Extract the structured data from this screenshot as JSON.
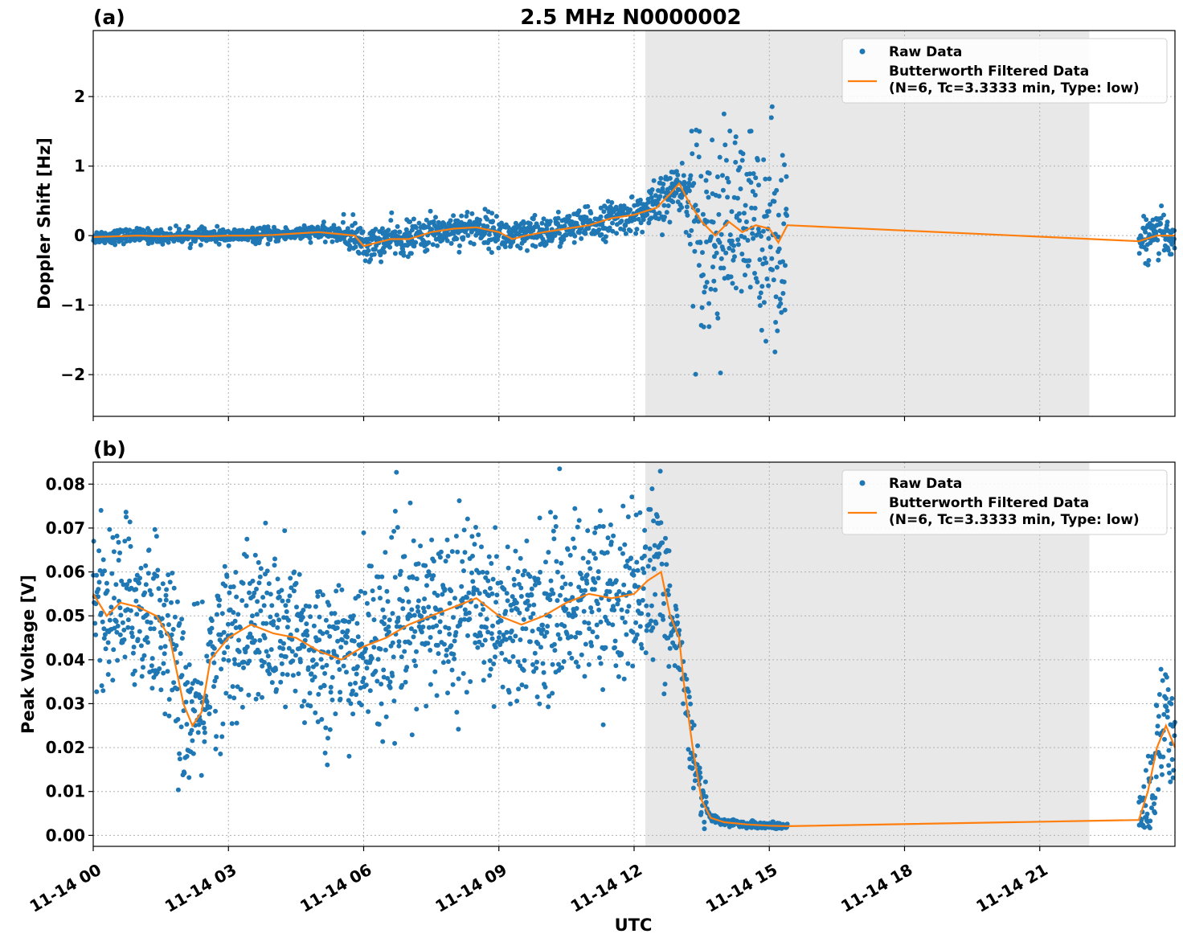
{
  "figure": {
    "title": "2.5 MHz N0000002",
    "xlabel": "UTC"
  },
  "colors": {
    "raw": "#1f77b4",
    "filtered": "#ff7f0e",
    "shade": "#e8e8e8",
    "grid": "#b0b0b0"
  },
  "chart_data": [
    {
      "type": "scatter",
      "panel_label": "(a)",
      "ylabel": "Doppler Shift [Hz]",
      "x_unit": "hours since 11-14 00:00 UTC",
      "xlim": [
        0,
        24
      ],
      "ylim": [
        -2.6,
        2.95
      ],
      "yticks": [
        -2,
        -1,
        0,
        1,
        2
      ],
      "ytick_labels": [
        "−2",
        "−1",
        "0",
        "1",
        "2"
      ],
      "grid": true,
      "legend_position": "top-right",
      "shaded_interval_hours": [
        12.25,
        22.1
      ],
      "series": [
        {
          "name": "Raw Data",
          "kind": "points",
          "gaps_hours": [
            [
              15.4,
              23.2
            ]
          ]
        },
        {
          "name": "Butterworth Filtered Data\n(N=6, Tc=3.3333 min, Type: low)",
          "kind": "line",
          "x": [
            0,
            0.5,
            1,
            1.5,
            2,
            2.5,
            3,
            3.5,
            4,
            4.5,
            5,
            5.5,
            5.8,
            6.0,
            6.3,
            6.6,
            7,
            7.5,
            8,
            8.5,
            9,
            9.3,
            9.6,
            10,
            10.5,
            11,
            11.5,
            12,
            12.5,
            12.8,
            13.0,
            13.2,
            13.5,
            13.8,
            14.1,
            14.4,
            14.7,
            15.0,
            15.2,
            15.4,
            23.2,
            23.6,
            24
          ],
          "y": [
            -0.02,
            -0.01,
            0.0,
            -0.01,
            0.0,
            -0.01,
            0.0,
            0.0,
            0.01,
            0.03,
            0.05,
            0.02,
            0.0,
            -0.15,
            -0.1,
            -0.05,
            -0.05,
            0.05,
            0.1,
            0.12,
            0.05,
            -0.05,
            0.0,
            0.05,
            0.1,
            0.15,
            0.25,
            0.3,
            0.4,
            0.6,
            0.75,
            0.5,
            0.2,
            0.0,
            0.2,
            0.05,
            0.15,
            0.1,
            -0.1,
            0.15,
            -0.08,
            0.0,
            0.0
          ]
        }
      ]
    },
    {
      "type": "scatter",
      "panel_label": "(b)",
      "ylabel": "Peak Voltage [V]",
      "x_unit": "hours since 11-14 00:00 UTC",
      "xlim": [
        0,
        24
      ],
      "ylim": [
        -0.0025,
        0.085
      ],
      "yticks": [
        0.0,
        0.01,
        0.02,
        0.03,
        0.04,
        0.05,
        0.06,
        0.07,
        0.08
      ],
      "ytick_labels": [
        "0.00",
        "0.01",
        "0.02",
        "0.03",
        "0.04",
        "0.05",
        "0.06",
        "0.07",
        "0.08"
      ],
      "xticks": [
        0,
        3,
        6,
        9,
        12,
        15,
        18,
        21
      ],
      "xtick_labels": [
        "11-14 00",
        "11-14 03",
        "11-14 06",
        "11-14 09",
        "11-14 12",
        "11-14 15",
        "11-14 18",
        "11-14 21"
      ],
      "grid": true,
      "legend_position": "top-right",
      "shaded_interval_hours": [
        12.25,
        22.1
      ],
      "series": [
        {
          "name": "Raw Data",
          "kind": "points",
          "gaps_hours": [
            [
              15.4,
              23.2
            ]
          ]
        },
        {
          "name": "Butterworth Filtered Data\n(N=6, Tc=3.3333 min, Type: low)",
          "kind": "line",
          "x": [
            0,
            0.3,
            0.6,
            1.0,
            1.4,
            1.7,
            2.0,
            2.2,
            2.4,
            2.6,
            3.0,
            3.5,
            4.0,
            4.5,
            5.0,
            5.5,
            6.0,
            6.5,
            7.0,
            7.5,
            8.0,
            8.5,
            9.0,
            9.5,
            10.0,
            10.5,
            11.0,
            11.5,
            12.0,
            12.3,
            12.6,
            12.8,
            13.0,
            13.1,
            13.3,
            13.5,
            13.7,
            14.0,
            14.5,
            15.0,
            15.4,
            23.2,
            23.4,
            23.6,
            23.8,
            24
          ],
          "y": [
            0.055,
            0.05,
            0.053,
            0.052,
            0.05,
            0.045,
            0.03,
            0.025,
            0.028,
            0.04,
            0.045,
            0.048,
            0.046,
            0.045,
            0.042,
            0.04,
            0.043,
            0.045,
            0.048,
            0.05,
            0.052,
            0.054,
            0.05,
            0.048,
            0.05,
            0.053,
            0.055,
            0.054,
            0.055,
            0.058,
            0.06,
            0.05,
            0.045,
            0.035,
            0.02,
            0.008,
            0.004,
            0.003,
            0.0025,
            0.0022,
            0.0021,
            0.0035,
            0.01,
            0.02,
            0.025,
            0.02
          ]
        }
      ]
    }
  ]
}
